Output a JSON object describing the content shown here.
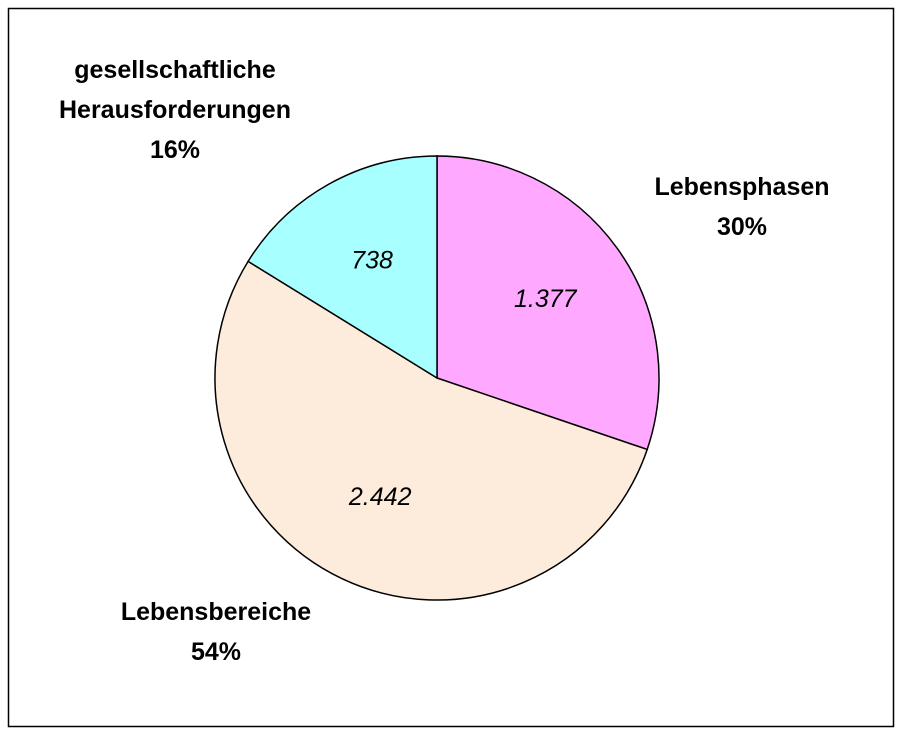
{
  "chart_data": {
    "type": "pie",
    "categories": [
      "Lebensphasen",
      "Lebensbereiche",
      "gesellschaftliche Herausforderungen"
    ],
    "values": [
      1377,
      2442,
      738
    ],
    "value_labels": [
      "1.377",
      "2.442",
      "738"
    ],
    "percent_labels": [
      "30%",
      "54%",
      "16%"
    ],
    "colors": [
      "#ffa8ff",
      "#fdebdc",
      "#a8ffff"
    ]
  }
}
